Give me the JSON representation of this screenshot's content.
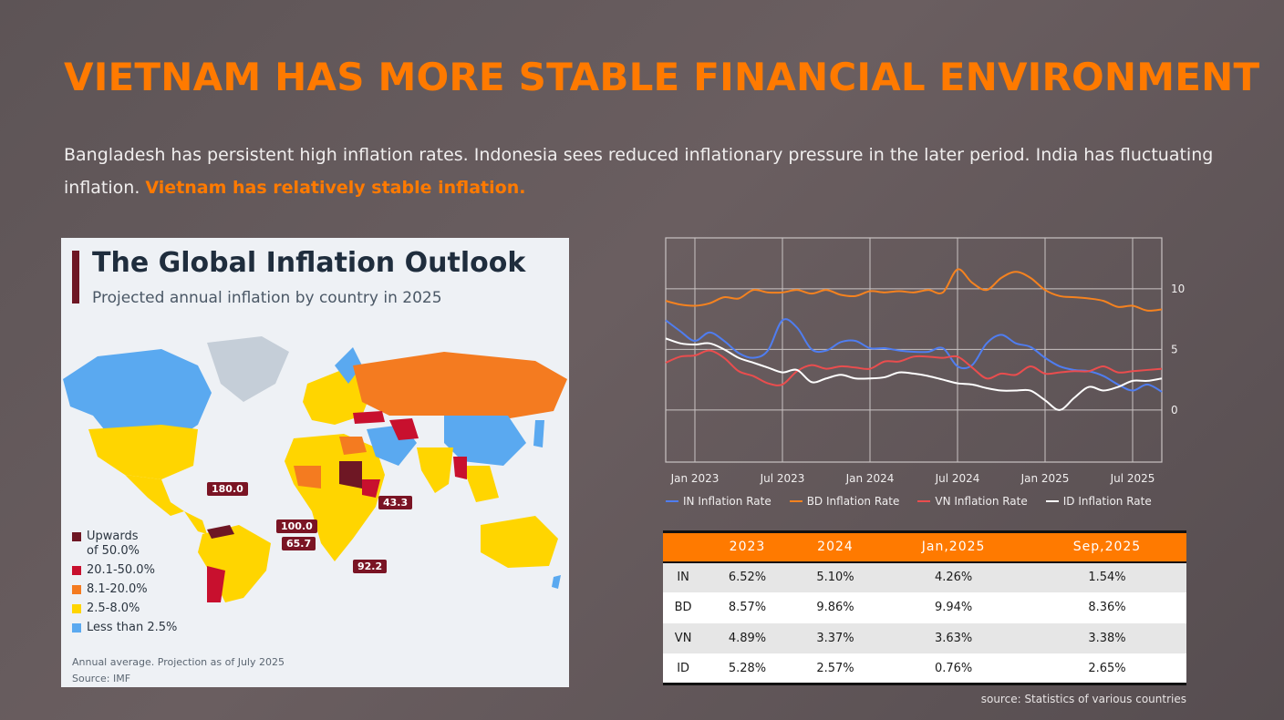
{
  "header": {
    "title": "VIETNAM HAS MORE STABLE FINANCIAL ENVIRONMENT",
    "subtitle_plain": "Bangladesh has persistent high inflation rates. Indonesia sees reduced inflationary pressure in the later period. India has fluctuating inflation.",
    "subtitle_highlight": "Vietnam has relatively stable inflation."
  },
  "map": {
    "title": "The Global Inflation Outlook",
    "subtitle": "Projected annual inflation by country in 2025",
    "legend": [
      {
        "label": "Upwards\nof 50.0%",
        "color": "#6e1724"
      },
      {
        "label": "20.1-50.0%",
        "color": "#c8102e"
      },
      {
        "label": "8.1-20.0%",
        "color": "#f47b20"
      },
      {
        "label": "2.5-8.0%",
        "color": "#ffd500"
      },
      {
        "label": "Less than 2.5%",
        "color": "#5aa9f0"
      }
    ],
    "callouts": [
      "180.0",
      "100.0",
      "65.7",
      "43.3",
      "92.2"
    ],
    "note": "Annual average. Projection as of July 2025",
    "source": "Source: IMF",
    "colors": {
      "ocean": "#eef1f5",
      "greenland": "#c5ced8"
    }
  },
  "chart_data": {
    "type": "line",
    "x_tick_labels": [
      "Jan 2023",
      "Jul 2023",
      "Jan 2024",
      "Jul 2024",
      "Jan 2025",
      "Jul 2025"
    ],
    "y_tick_labels": [
      "0",
      "5",
      "10"
    ],
    "ylim": [
      -4.3,
      14.2
    ],
    "grid": true,
    "legend_position": "bottom",
    "x": [
      "2022-11",
      "2022-12",
      "2023-01",
      "2023-02",
      "2023-03",
      "2023-04",
      "2023-05",
      "2023-06",
      "2023-07",
      "2023-08",
      "2023-09",
      "2023-10",
      "2023-11",
      "2023-12",
      "2024-01",
      "2024-02",
      "2024-03",
      "2024-04",
      "2024-05",
      "2024-06",
      "2024-07",
      "2024-08",
      "2024-09",
      "2024-10",
      "2024-11",
      "2024-12",
      "2025-01",
      "2025-02",
      "2025-03",
      "2025-04",
      "2025-05",
      "2025-06",
      "2025-07",
      "2025-08",
      "2025-09"
    ],
    "series": [
      {
        "name": "IN Inflation Rate",
        "color": "#4f7df0",
        "values": [
          7.4,
          6.5,
          5.7,
          6.4,
          5.7,
          4.7,
          4.3,
          4.9,
          7.4,
          6.8,
          5.0,
          4.9,
          5.6,
          5.7,
          5.1,
          5.1,
          4.9,
          4.8,
          4.8,
          5.1,
          3.6,
          3.7,
          5.5,
          6.2,
          5.5,
          5.2,
          4.3,
          3.6,
          3.3,
          3.2,
          2.8,
          2.1,
          1.6,
          2.1,
          1.5
        ]
      },
      {
        "name": "BD Inflation Rate",
        "color": "#f5821f",
        "values": [
          9.0,
          8.7,
          8.6,
          8.8,
          9.3,
          9.2,
          9.9,
          9.7,
          9.7,
          9.9,
          9.6,
          9.9,
          9.5,
          9.4,
          9.8,
          9.7,
          9.8,
          9.7,
          9.9,
          9.7,
          11.6,
          10.5,
          9.9,
          10.9,
          11.4,
          10.9,
          9.9,
          9.4,
          9.3,
          9.2,
          9.0,
          8.5,
          8.6,
          8.2,
          8.3
        ]
      },
      {
        "name": "VN Inflation Rate",
        "color": "#ea4d4e",
        "values": [
          3.9,
          4.4,
          4.5,
          4.9,
          4.3,
          3.2,
          2.8,
          2.2,
          2.1,
          3.2,
          3.7,
          3.4,
          3.6,
          3.5,
          3.4,
          4.0,
          4.0,
          4.4,
          4.4,
          4.3,
          4.4,
          3.5,
          2.6,
          3.0,
          2.9,
          3.6,
          3.0,
          3.1,
          3.2,
          3.2,
          3.6,
          3.1,
          3.2,
          3.3,
          3.4
        ]
      },
      {
        "name": "ID Inflation Rate",
        "color": "#ffffff",
        "values": [
          5.9,
          5.5,
          5.4,
          5.5,
          5.0,
          4.3,
          3.9,
          3.5,
          3.1,
          3.3,
          2.3,
          2.6,
          2.9,
          2.6,
          2.6,
          2.7,
          3.1,
          3.0,
          2.8,
          2.5,
          2.2,
          2.1,
          1.8,
          1.6,
          1.6,
          1.6,
          0.8,
          0.0,
          1.0,
          1.9,
          1.6,
          1.9,
          2.4,
          2.4,
          2.6
        ]
      }
    ]
  },
  "table": {
    "headers": [
      "",
      "2023",
      "2024",
      "Jan,2025",
      "Sep,2025"
    ],
    "rows": [
      [
        "IN",
        "6.52%",
        "5.10%",
        "4.26%",
        "1.54%"
      ],
      [
        "BD",
        "8.57%",
        "9.86%",
        "9.94%",
        "8.36%"
      ],
      [
        "VN",
        "4.89%",
        "3.37%",
        "3.63%",
        "3.38%"
      ],
      [
        "ID",
        "5.28%",
        "2.57%",
        "0.76%",
        "2.65%"
      ]
    ]
  },
  "footer": {
    "source": "source: Statistics of various countries"
  },
  "theme": {
    "accent": "#ff7a00",
    "grid": "#c9c3c3"
  }
}
